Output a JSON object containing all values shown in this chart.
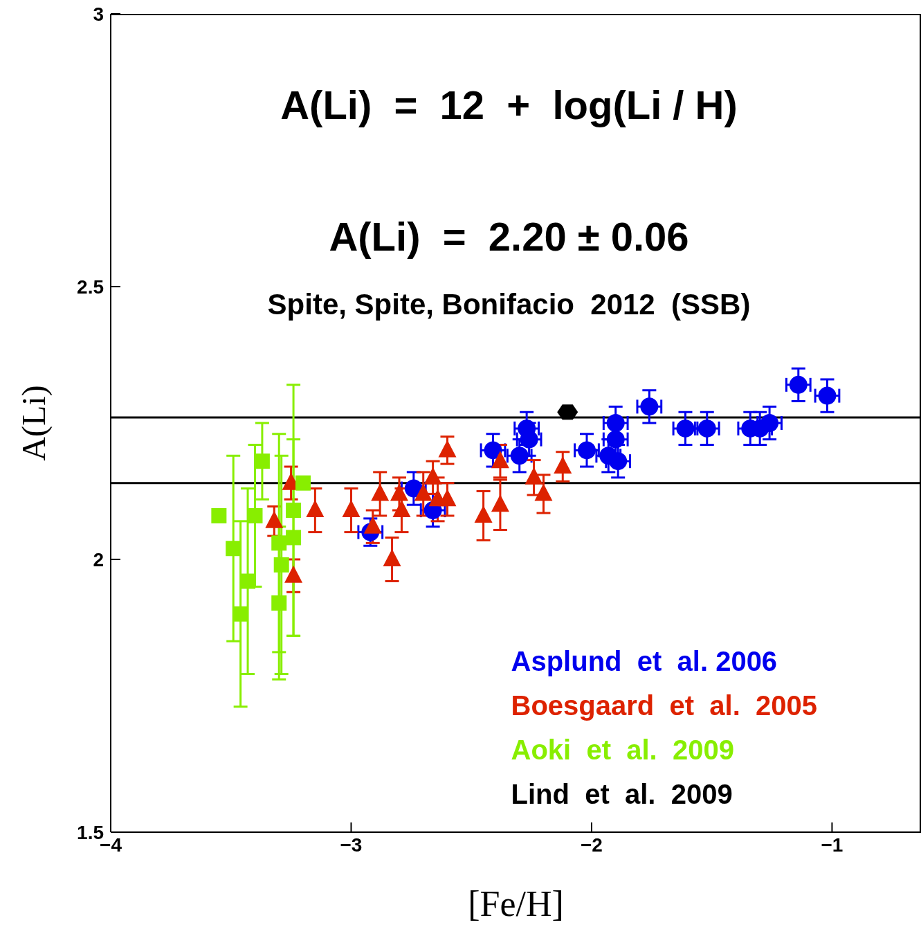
{
  "chart_data": {
    "type": "scatter",
    "title": "A(Li)  =  12  +  log(Li / H)",
    "subtitle": "A(Li)  =  2.20 ± 0.06",
    "annotations": [
      "Spite, Spite, Bonifacio  2012  (SSB)"
    ],
    "xlabel": "[Fe/H]",
    "ylabel": "A(Li)",
    "xlim": [
      -4,
      -0.63
    ],
    "ylim": [
      1.5,
      3
    ],
    "xticks": [
      -4,
      -3,
      -2,
      -1
    ],
    "yticks": [
      1.5,
      2,
      2.5,
      3
    ],
    "grid": false,
    "legend": "bottom right",
    "ref_lines": [
      {
        "axis": "y",
        "value": 2.26,
        "color": "#000000"
      },
      {
        "axis": "y",
        "value": 2.14,
        "color": "#000000"
      }
    ],
    "series": [
      {
        "name": "Asplund  et  al. 2006",
        "color": "#0000ee",
        "marker": "circle",
        "x": [
          -2.92,
          -2.74,
          -2.66,
          -2.41,
          -2.3,
          -2.27,
          -2.26,
          -2.02,
          -1.93,
          -1.9,
          -1.9,
          -1.89,
          -1.76,
          -1.61,
          -1.52,
          -1.34,
          -1.3,
          -1.26,
          -1.14,
          -1.02
        ],
        "values": [
          2.05,
          2.13,
          2.09,
          2.2,
          2.19,
          2.24,
          2.22,
          2.2,
          2.19,
          2.25,
          2.22,
          2.18,
          2.28,
          2.24,
          2.24,
          2.24,
          2.24,
          2.25,
          2.32,
          2.3
        ],
        "errors": [
          0.025,
          0.03,
          0.03,
          0.03,
          0.03,
          0.03,
          0.03,
          0.03,
          0.03,
          0.03,
          0.03,
          0.03,
          0.03,
          0.03,
          0.03,
          0.03,
          0.03,
          0.03,
          0.03,
          0.03
        ],
        "xerrors": [
          0.05,
          0.05,
          0.05,
          0.05,
          0.05,
          0.05,
          0.05,
          0.05,
          0.05,
          0.05,
          0.05,
          0.05,
          0.05,
          0.05,
          0.05,
          0.05,
          0.05,
          0.05,
          0.05,
          0.05
        ]
      },
      {
        "name": "Boesgaard  et  al.  2005",
        "color": "#dd2200",
        "marker": "triangle",
        "x": [
          -3.32,
          -3.25,
          -3.24,
          -3.15,
          -3.0,
          -2.91,
          -2.88,
          -2.83,
          -2.8,
          -2.79,
          -2.7,
          -2.66,
          -2.64,
          -2.6,
          -2.6,
          -2.45,
          -2.38,
          -2.38,
          -2.24,
          -2.2,
          -2.12
        ],
        "values": [
          2.07,
          2.14,
          1.97,
          2.09,
          2.09,
          2.06,
          2.12,
          2.0,
          2.12,
          2.09,
          2.12,
          2.15,
          2.11,
          2.11,
          2.2,
          2.08,
          2.1,
          2.18,
          2.15,
          2.12,
          2.17
        ],
        "errors": [
          0.027,
          0.03,
          0.03,
          0.04,
          0.04,
          0.03,
          0.04,
          0.04,
          0.03,
          0.04,
          0.04,
          0.03,
          0.04,
          0.03,
          0.025,
          0.045,
          0.046,
          0.03,
          0.032,
          0.035,
          0.027
        ]
      },
      {
        "name": "Aoki  et  al.  2009",
        "color": "#88ee00",
        "marker": "square",
        "x": [
          -3.55,
          -3.49,
          -3.46,
          -3.43,
          -3.4,
          -3.37,
          -3.3,
          -3.29,
          -3.3,
          -3.24,
          -3.24,
          -3.2
        ],
        "values": [
          2.08,
          2.02,
          1.9,
          1.96,
          2.08,
          2.18,
          2.03,
          1.99,
          1.92,
          2.09,
          2.04,
          2.14
        ],
        "errors": [
          null,
          0.17,
          0.17,
          0.17,
          0.13,
          0.07,
          0.2,
          0.2,
          0.14,
          0.23,
          0.18,
          null
        ]
      },
      {
        "name": "Lind  et  al.  2009",
        "color": "#000000",
        "x": [
          -2.1
        ],
        "values": [
          2.27
        ]
      }
    ]
  }
}
